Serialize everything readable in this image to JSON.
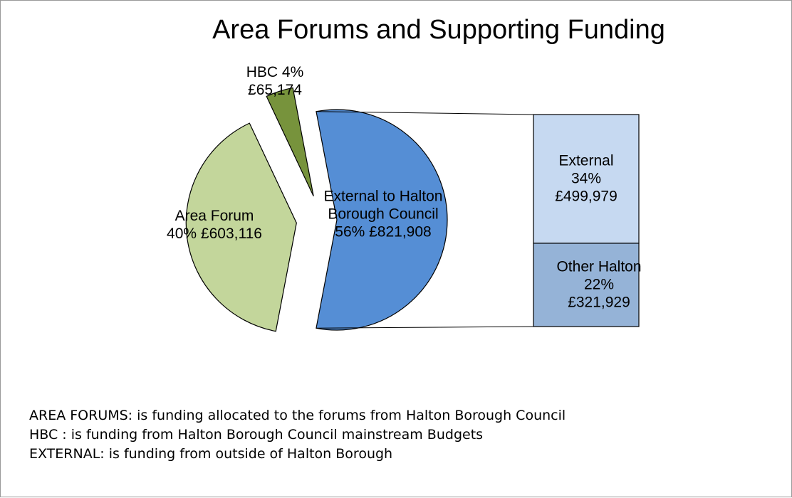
{
  "chart_data": {
    "type": "pie-of-bar",
    "title": "Area Forums and Supporting Funding",
    "categories": [
      "Area Forum",
      "HBC",
      "External to Halton Borough Council"
    ],
    "values": [
      40,
      4,
      56
    ],
    "value_labels": [
      "40% £603,116",
      "4% £65,174",
      "56% £821,908"
    ],
    "colors": [
      "#c3d69b",
      "#77933c",
      "#558ed5"
    ],
    "breakdown": {
      "categories": [
        "External",
        "Other Halton"
      ],
      "values": [
        34,
        22
      ],
      "value_labels": [
        "34% £499,979",
        "22% £321,929"
      ],
      "colors": [
        "#c6d9f1",
        "#95b3d7"
      ]
    },
    "notes": [
      "AREA FORUMS: is funding allocated to the forums from Halton Borough Council",
      "HBC : is funding from Halton Borough Council mainstream Budgets",
      "EXTERNAL: is funding from outside of Halton Borough"
    ]
  }
}
